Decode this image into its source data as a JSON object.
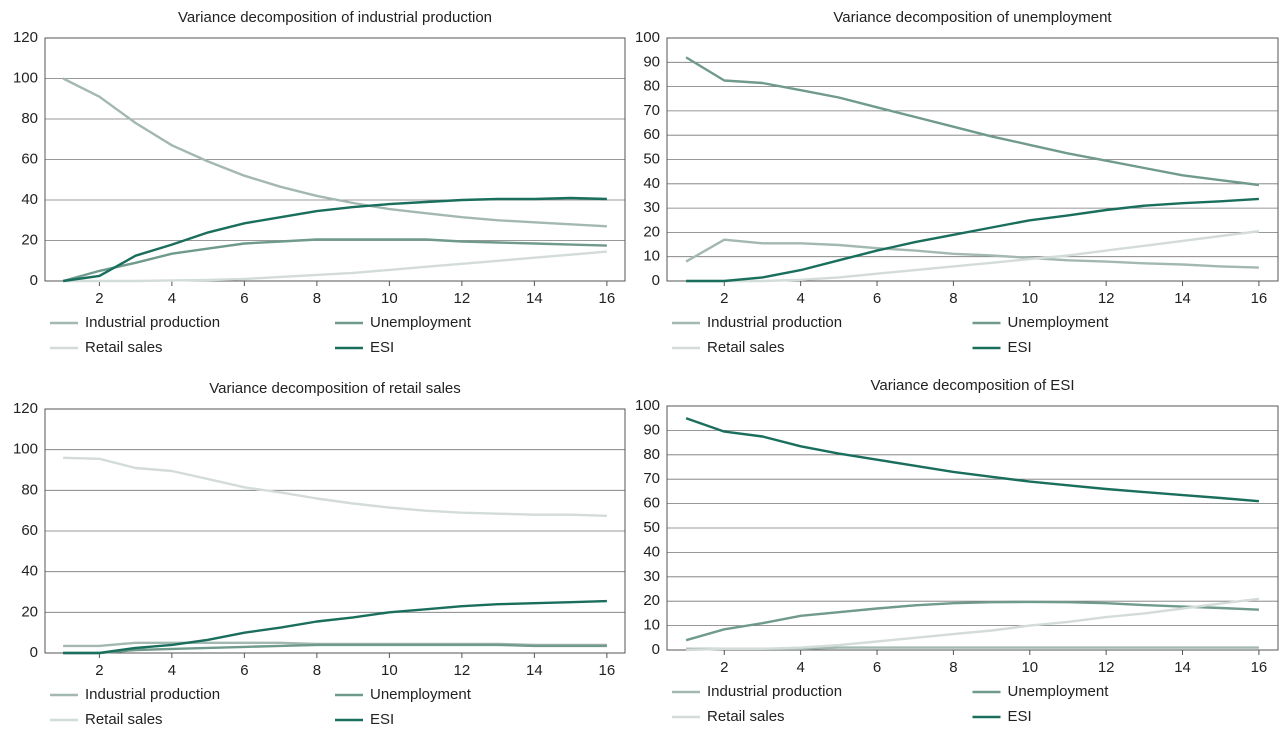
{
  "chart_data": [
    {
      "type": "line",
      "title": "Variance decomposition of industrial production",
      "x": [
        1,
        2,
        3,
        4,
        5,
        6,
        7,
        8,
        9,
        10,
        11,
        12,
        13,
        14,
        15,
        16
      ],
      "xlim": [
        0.5,
        16.5
      ],
      "xticks": [
        2,
        4,
        6,
        8,
        10,
        12,
        14,
        16
      ],
      "ylim": [
        0,
        120
      ],
      "yticks": [
        0,
        20,
        40,
        60,
        80,
        100,
        120
      ],
      "grid": true,
      "legend": "bottom",
      "series": [
        {
          "name": "Industrial production",
          "color": "#a3b8b0",
          "values": [
            100,
            91,
            78,
            67,
            59,
            52,
            46.5,
            42,
            38.5,
            35.5,
            33.5,
            31.5,
            30,
            29,
            28,
            27
          ]
        },
        {
          "name": "Unemployment",
          "color": "#6f9a8d",
          "values": [
            0,
            5,
            9,
            13.5,
            16,
            18.5,
            19.5,
            20.5,
            20.5,
            20.5,
            20.5,
            19.5,
            19,
            18.5,
            18,
            17.5
          ]
        },
        {
          "name": "Retail sales",
          "color": "#d3dcd8",
          "values": [
            0,
            0,
            0,
            0.3,
            0.5,
            1,
            2,
            3,
            4,
            5.5,
            7,
            8.5,
            10,
            11.5,
            13,
            14.5
          ]
        },
        {
          "name": "ESI",
          "color": "#1a6e5c",
          "values": [
            0,
            2.5,
            12.5,
            18,
            24,
            28.5,
            31.5,
            34.5,
            36.5,
            38,
            39,
            40,
            40.5,
            40.5,
            41,
            40.5
          ]
        }
      ]
    },
    {
      "type": "line",
      "title": "Variance decomposition of unemployment",
      "x": [
        1,
        2,
        3,
        4,
        5,
        6,
        7,
        8,
        9,
        10,
        11,
        12,
        13,
        14,
        15,
        16
      ],
      "xlim": [
        0.5,
        16.5
      ],
      "xticks": [
        2,
        4,
        6,
        8,
        10,
        12,
        14,
        16
      ],
      "ylim": [
        0,
        100
      ],
      "yticks": [
        0,
        10,
        20,
        30,
        40,
        50,
        60,
        70,
        80,
        90,
        100
      ],
      "grid": true,
      "legend": "bottom",
      "series": [
        {
          "name": "Industrial production",
          "color": "#a3b8b0",
          "values": [
            8,
            17,
            15.5,
            15.5,
            14.8,
            13.5,
            12.5,
            11.2,
            10.5,
            9.5,
            8.5,
            8,
            7.3,
            6.8,
            6,
            5.5
          ]
        },
        {
          "name": "Unemployment",
          "color": "#6f9a8d",
          "values": [
            92,
            82.5,
            81.5,
            78.5,
            75.5,
            71.5,
            67.5,
            63.5,
            59.5,
            56,
            52.5,
            49.5,
            46.5,
            43.5,
            41.5,
            39.5
          ]
        },
        {
          "name": "Retail sales",
          "color": "#d3dcd8",
          "values": [
            0,
            0,
            0,
            0.5,
            1.5,
            3,
            4.5,
            6,
            7.5,
            9,
            10.5,
            12.5,
            14.5,
            16.5,
            18.5,
            20.5
          ]
        },
        {
          "name": "ESI",
          "color": "#1a6e5c",
          "values": [
            0,
            0,
            1.5,
            4.5,
            8.5,
            12.5,
            16,
            19,
            22,
            25,
            27,
            29.2,
            31,
            32,
            32.8,
            33.8
          ]
        }
      ]
    },
    {
      "type": "line",
      "title": "Variance decomposition of retail sales",
      "x": [
        1,
        2,
        3,
        4,
        5,
        6,
        7,
        8,
        9,
        10,
        11,
        12,
        13,
        14,
        15,
        16
      ],
      "xlim": [
        0.5,
        16.5
      ],
      "xticks": [
        2,
        4,
        6,
        8,
        10,
        12,
        14,
        16
      ],
      "ylim": [
        0,
        120
      ],
      "yticks": [
        0,
        20,
        40,
        60,
        80,
        100,
        120
      ],
      "grid": true,
      "legend": "bottom",
      "series": [
        {
          "name": "Industrial production",
          "color": "#a3b8b0",
          "values": [
            3.5,
            3.5,
            5,
            5,
            5,
            5,
            5,
            4.5,
            4.5,
            4.5,
            4.5,
            4.5,
            4.5,
            4,
            4,
            4
          ]
        },
        {
          "name": "Unemployment",
          "color": "#6f9a8d",
          "values": [
            0,
            0,
            1.5,
            2,
            2.5,
            3,
            3.5,
            4,
            4,
            4,
            4,
            4,
            4,
            3.5,
            3.5,
            3.5
          ]
        },
        {
          "name": "Retail sales",
          "color": "#d3dcd8",
          "values": [
            96,
            95.5,
            91,
            89.5,
            85.5,
            81.5,
            79,
            76,
            73.5,
            71.5,
            70,
            69,
            68.5,
            68,
            68,
            67.5
          ]
        },
        {
          "name": "ESI",
          "color": "#1a6e5c",
          "values": [
            0,
            0,
            2.5,
            4,
            6.5,
            10,
            12.5,
            15.5,
            17.5,
            20,
            21.5,
            23,
            24,
            24.5,
            25,
            25.5
          ]
        }
      ]
    },
    {
      "type": "line",
      "title": "Variance decomposition of ESI",
      "x": [
        1,
        2,
        3,
        4,
        5,
        6,
        7,
        8,
        9,
        10,
        11,
        12,
        13,
        14,
        15,
        16
      ],
      "xlim": [
        0.5,
        16.5
      ],
      "xticks": [
        2,
        4,
        6,
        8,
        10,
        12,
        14,
        16
      ],
      "ylim": [
        0,
        100
      ],
      "yticks": [
        0,
        10,
        20,
        30,
        40,
        50,
        60,
        70,
        80,
        90,
        100
      ],
      "grid": true,
      "legend": "bottom",
      "series": [
        {
          "name": "Industrial production",
          "color": "#a3b8b0",
          "values": [
            0.5,
            0.5,
            0.5,
            0.5,
            1,
            1,
            1,
            1,
            1,
            1,
            1,
            1,
            1,
            1,
            1,
            1
          ]
        },
        {
          "name": "Unemployment",
          "color": "#6f9a8d",
          "values": [
            4,
            8.5,
            11,
            14,
            15.5,
            17,
            18.3,
            19.2,
            19.6,
            19.7,
            19.6,
            19.2,
            18.4,
            17.8,
            17.2,
            16.5
          ]
        },
        {
          "name": "Retail sales",
          "color": "#d3dcd8",
          "values": [
            0,
            0.5,
            0.5,
            1,
            2,
            3.5,
            5,
            6.5,
            8,
            10,
            11.5,
            13.5,
            15,
            17,
            19,
            21
          ]
        },
        {
          "name": "ESI",
          "color": "#1a6e5c",
          "values": [
            95,
            89.5,
            87.5,
            83.5,
            80.5,
            78,
            75.5,
            73,
            71,
            69,
            67.5,
            66,
            64.7,
            63.5,
            62.3,
            61
          ]
        }
      ]
    }
  ]
}
